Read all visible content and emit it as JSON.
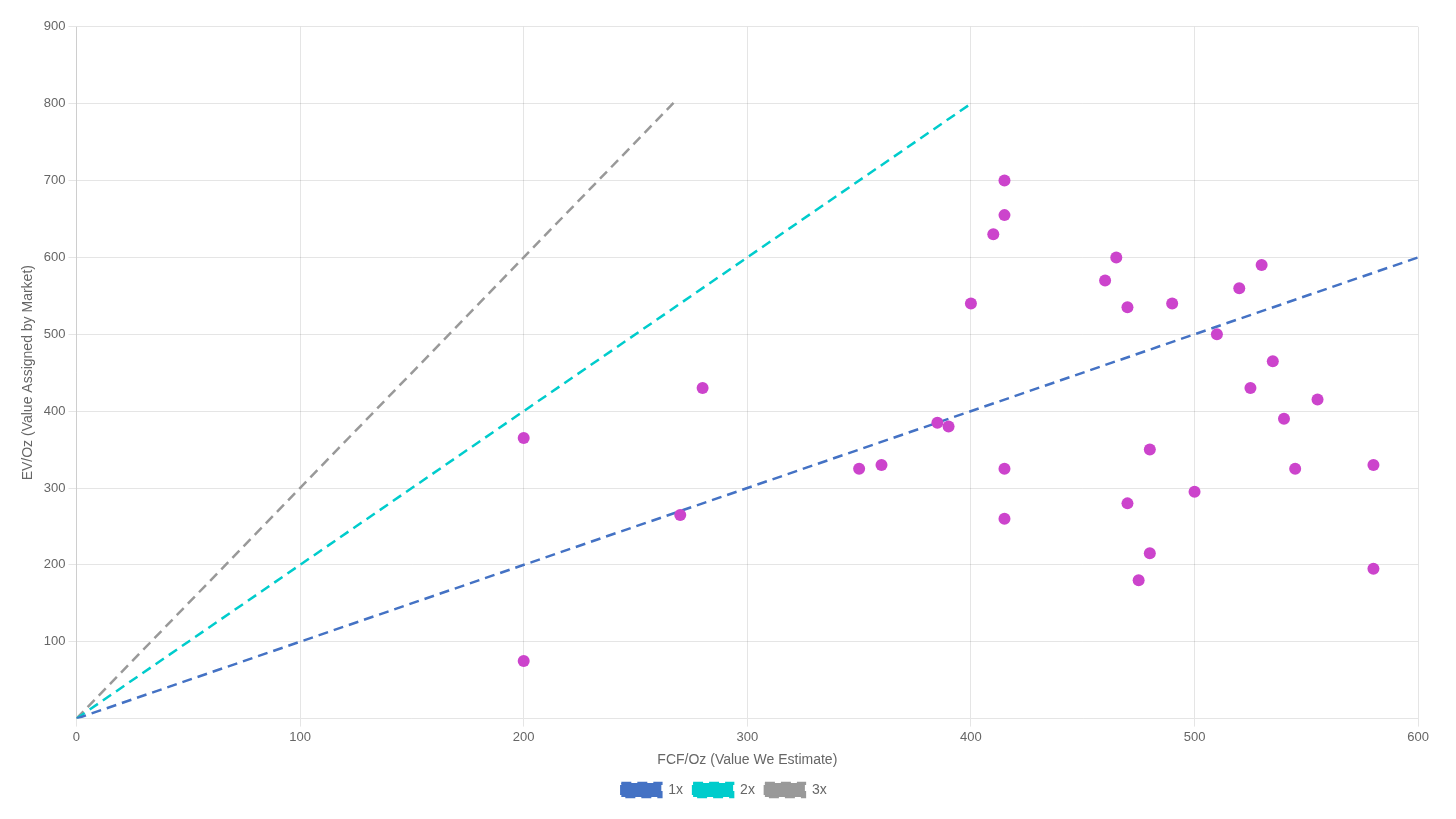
{
  "chart_data": {
    "type": "scatter",
    "xlabel": "FCF/Oz (Value We Estimate)",
    "ylabel": "EV/Oz (Value Assigned by Market)",
    "xlim": [
      0,
      600
    ],
    "ylim": [
      0,
      900
    ],
    "xticks": [
      0,
      100,
      200,
      300,
      400,
      500,
      600
    ],
    "yticks": [
      100,
      200,
      300,
      400,
      500,
      600,
      700,
      800,
      900
    ],
    "grid": true,
    "legend": "bottom",
    "series": [
      {
        "type": "scatter",
        "color": "#CC44CC",
        "marker": "circle",
        "x": [
          200,
          200,
          270,
          280,
          350,
          360,
          385,
          390,
          400,
          410,
          415,
          415,
          415,
          415,
          460,
          465,
          470,
          470,
          475,
          480,
          480,
          490,
          500,
          510,
          520,
          525,
          530,
          535,
          540,
          545,
          555,
          580,
          580
        ],
        "values": [
          75,
          365,
          265,
          430,
          325,
          330,
          385,
          380,
          540,
          630,
          700,
          655,
          260,
          325,
          570,
          600,
          535,
          280,
          180,
          215,
          350,
          540,
          295,
          500,
          560,
          430,
          590,
          465,
          390,
          325,
          415,
          330,
          195
        ]
      },
      {
        "name": "1x",
        "type": "line",
        "color": "#4472C4",
        "line_style": "dashed",
        "x": [
          0,
          600
        ],
        "values": [
          0,
          600
        ]
      },
      {
        "name": "2x",
        "type": "line",
        "color": "#00CCCC",
        "line_style": "dashed",
        "x": [
          0,
          400
        ],
        "values": [
          0,
          800
        ]
      },
      {
        "name": "3x",
        "type": "line",
        "color": "#999999",
        "line_style": "dashed",
        "x": [
          0,
          267
        ],
        "values": [
          0,
          801
        ]
      }
    ]
  }
}
